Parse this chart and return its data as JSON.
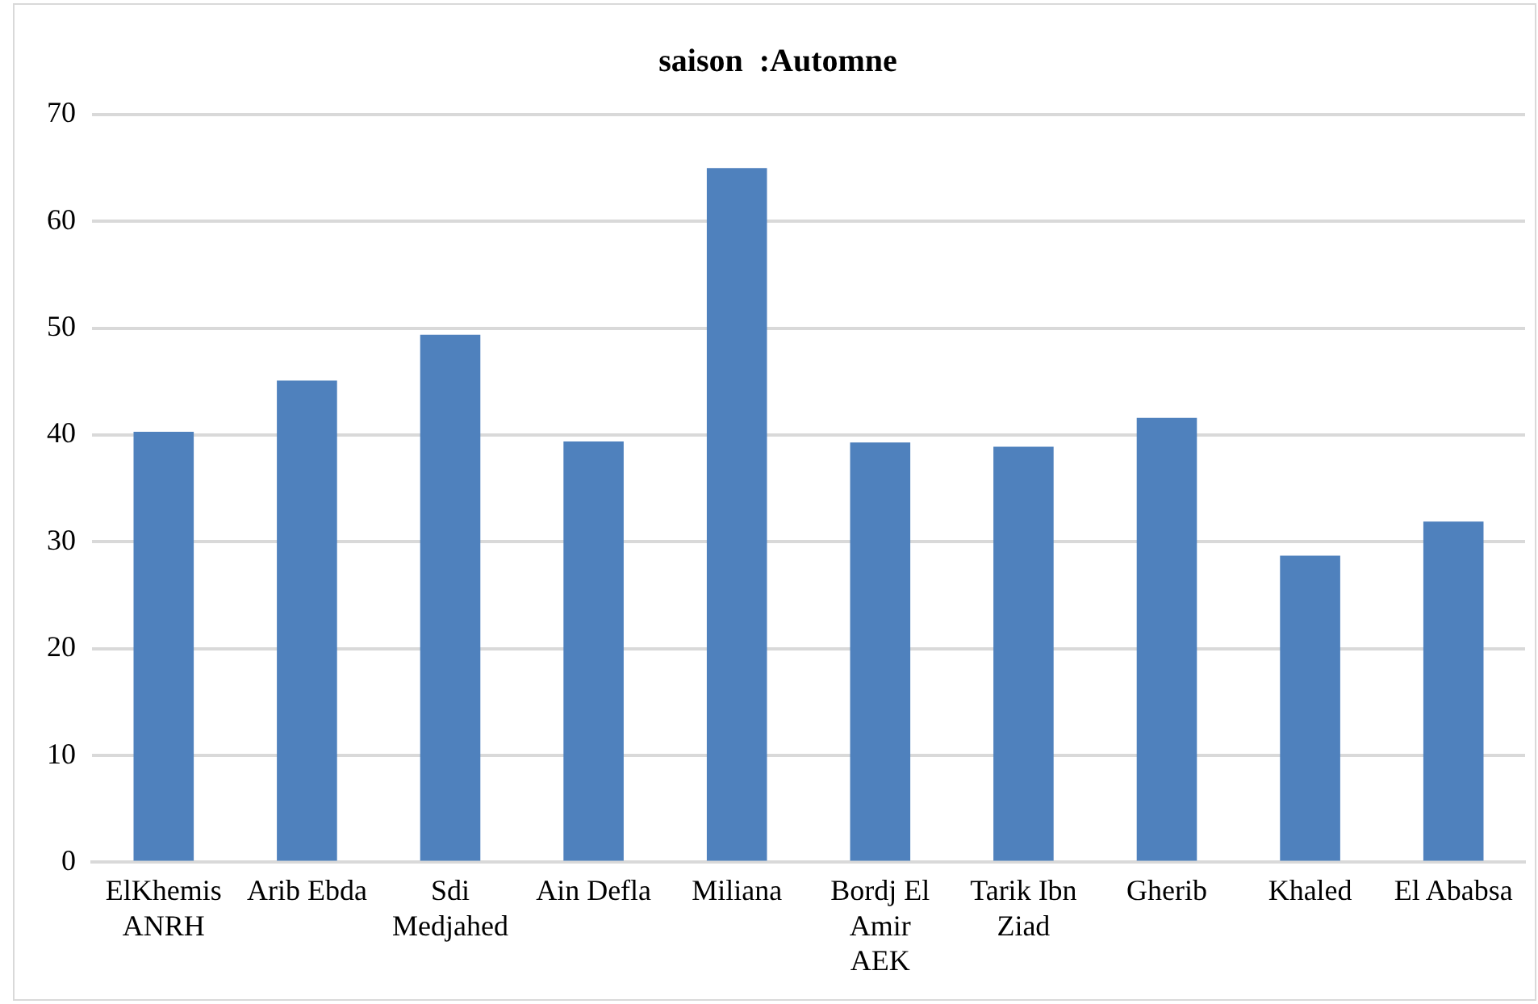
{
  "chart_data": {
    "type": "bar",
    "title": "saison  :Automne",
    "categories": [
      "ElKhemis ANRH",
      "Arib Ebda",
      "Sdi Medjahed",
      "Ain Defla",
      "Miliana",
      "Bordj El Amir AEK",
      "Tarik Ibn Ziad",
      "Gherib",
      "Khaled",
      "El Ababsa"
    ],
    "values": [
      40.3,
      45.1,
      49.4,
      39.4,
      65,
      39.3,
      38.9,
      41.6,
      28.7,
      31.9
    ],
    "color": "#4f81bd",
    "ylim": [
      0,
      70
    ],
    "yticks": [
      0,
      10,
      20,
      30,
      40,
      50,
      60,
      70
    ],
    "grid": "y",
    "legend": false
  }
}
